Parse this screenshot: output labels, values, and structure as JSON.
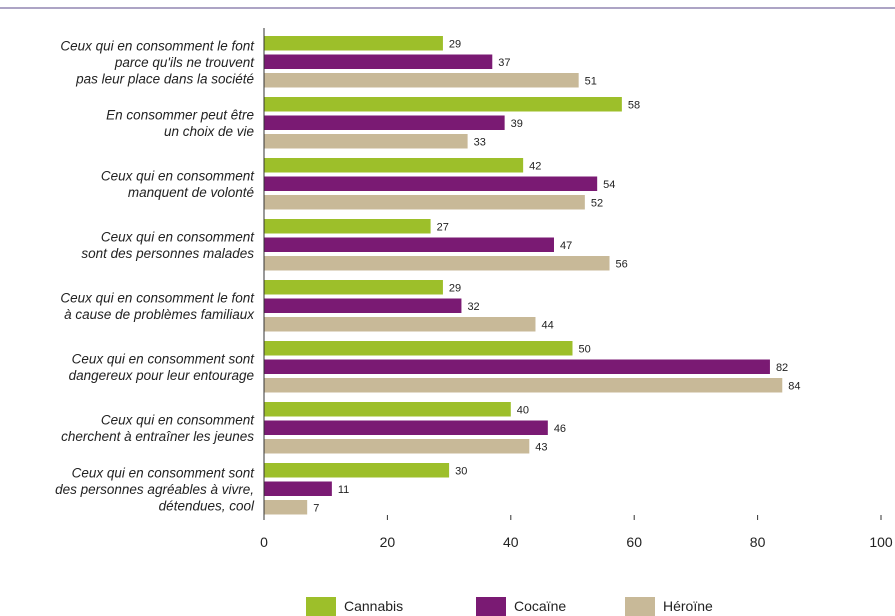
{
  "chart_data": {
    "type": "bar",
    "orientation": "horizontal",
    "categories": [
      [
        "Ceux qui en consomment le font",
        "parce qu'ils ne trouvent",
        "pas leur place dans la société"
      ],
      [
        "En consommer peut être",
        "un choix de vie"
      ],
      [
        "Ceux qui en consomment",
        "manquent de volonté"
      ],
      [
        "Ceux qui en consomment",
        "sont des personnes malades"
      ],
      [
        "Ceux qui en consomment le font",
        "à cause de problèmes familiaux"
      ],
      [
        "Ceux qui en consomment sont",
        "dangereux pour leur entourage"
      ],
      [
        "Ceux qui en consomment",
        "cherchent à entraîner les jeunes"
      ],
      [
        "Ceux qui en consomment sont",
        "des personnes agréables à vivre,",
        "détendues, cool"
      ]
    ],
    "series": [
      {
        "name": "Cannabis",
        "color": "#9dbf2a",
        "values": [
          29,
          58,
          42,
          27,
          29,
          50,
          40,
          30
        ]
      },
      {
        "name": "Cocaïne",
        "color": "#7a1a73",
        "values": [
          37,
          39,
          54,
          47,
          32,
          82,
          46,
          11
        ]
      },
      {
        "name": "Héroïne",
        "color": "#c8b998",
        "values": [
          51,
          33,
          52,
          56,
          44,
          84,
          43,
          7
        ]
      }
    ],
    "xlim": [
      0,
      100
    ],
    "xticks": [
      0,
      20,
      40,
      60,
      80,
      100
    ],
    "title": "",
    "xlabel": "",
    "ylabel": "",
    "grid": false,
    "legend_position": "bottom",
    "top_rule_color": "#5b4a8b"
  }
}
